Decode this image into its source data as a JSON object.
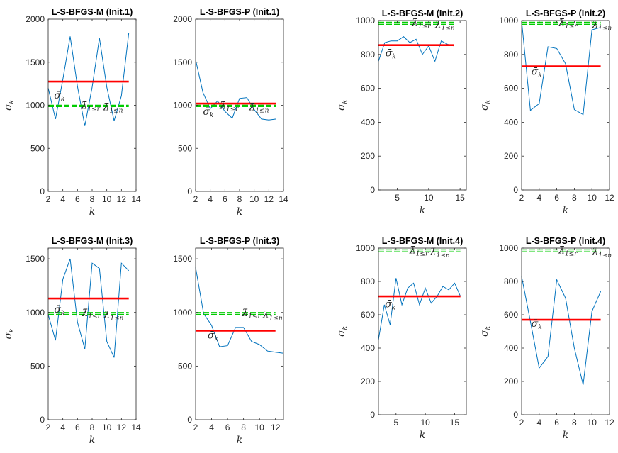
{
  "chart_data": [
    {
      "type": "line",
      "title": "L-S-BFGS-M (Init.1)",
      "xlabel": "k",
      "ylabel": "σ_k",
      "xlim": [
        2,
        14
      ],
      "ylim": [
        0,
        2000
      ],
      "xticks": [
        2,
        4,
        6,
        8,
        10,
        12,
        14
      ],
      "yticks": [
        0,
        500,
        1000,
        1500,
        2000
      ],
      "grid": false,
      "series": [
        {
          "role": "sigma",
          "color": "#0072bd",
          "x": [
            2,
            3,
            4,
            5,
            6,
            7,
            8,
            9,
            10,
            11,
            12,
            13
          ],
          "y": [
            1200,
            840,
            1300,
            1800,
            1220,
            760,
            1210,
            1780,
            1210,
            820,
            1110,
            1840
          ]
        },
        {
          "role": "mean",
          "color": "#ff0000",
          "x": [
            2,
            13
          ],
          "y": [
            1275,
            1275
          ]
        },
        {
          "role": "lambda_r",
          "color": "#00cc00",
          "x": [
            2,
            13
          ],
          "y": [
            1000,
            1000
          ]
        },
        {
          "role": "lambda_n",
          "color": "#00cc00",
          "x": [
            2,
            13
          ],
          "y": [
            985,
            985
          ]
        }
      ]
    },
    {
      "type": "line",
      "title": "L-S-BFGS-P (Init.1)",
      "xlabel": "k",
      "ylabel": "",
      "xlim": [
        2,
        14
      ],
      "ylim": [
        0,
        2000
      ],
      "xticks": [
        2,
        4,
        6,
        8,
        10,
        12,
        14
      ],
      "yticks": [
        0,
        500,
        1000,
        1500,
        2000
      ],
      "grid": false,
      "series": [
        {
          "role": "sigma",
          "color": "#0072bd",
          "x": [
            2,
            3,
            4,
            5,
            6,
            7,
            8,
            9,
            10,
            11,
            12,
            13
          ],
          "y": [
            1530,
            1150,
            960,
            1050,
            930,
            850,
            1080,
            1090,
            950,
            840,
            830,
            840
          ]
        },
        {
          "role": "mean",
          "color": "#ff0000",
          "x": [
            2,
            13
          ],
          "y": [
            1020,
            1020
          ]
        },
        {
          "role": "lambda_r",
          "color": "#00cc00",
          "x": [
            2,
            13
          ],
          "y": [
            1000,
            1000
          ]
        },
        {
          "role": "lambda_n",
          "color": "#00cc00",
          "x": [
            2,
            13
          ],
          "y": [
            985,
            985
          ]
        }
      ]
    },
    {
      "type": "line",
      "title": "L-S-BFGS-M (Init.2)",
      "xlabel": "k",
      "ylabel": "σ_k",
      "xlim": [
        2,
        16
      ],
      "ylim": [
        0,
        1000
      ],
      "xticks": [
        5,
        10,
        15
      ],
      "yticks": [
        0,
        200,
        400,
        600,
        800,
        1000
      ],
      "grid": false,
      "series": [
        {
          "role": "sigma",
          "color": "#0072bd",
          "x": [
            2,
            3,
            4,
            5,
            6,
            7,
            8,
            9,
            10,
            11,
            12,
            13,
            14
          ],
          "y": [
            760,
            870,
            880,
            880,
            905,
            870,
            890,
            800,
            850,
            760,
            880,
            860,
            850
          ]
        },
        {
          "role": "mean",
          "color": "#ff0000",
          "x": [
            2,
            14
          ],
          "y": [
            855,
            855
          ]
        },
        {
          "role": "lambda_r",
          "color": "#00cc00",
          "x": [
            2,
            14
          ],
          "y": [
            990,
            990
          ]
        },
        {
          "role": "lambda_n",
          "color": "#00cc00",
          "x": [
            2,
            14
          ],
          "y": [
            978,
            978
          ]
        }
      ]
    },
    {
      "type": "line",
      "title": "L-S-BFGS-P (Init.2)",
      "xlabel": "k",
      "ylabel": "",
      "xlim": [
        2,
        12
      ],
      "ylim": [
        0,
        1000
      ],
      "xticks": [
        2,
        4,
        6,
        8,
        10,
        12
      ],
      "yticks": [
        0,
        200,
        400,
        600,
        800,
        1000
      ],
      "grid": false,
      "series": [
        {
          "role": "sigma",
          "color": "#0072bd",
          "x": [
            2,
            3,
            4,
            5,
            6,
            7,
            8,
            9,
            10,
            11
          ],
          "y": [
            1000,
            470,
            510,
            845,
            835,
            745,
            475,
            445,
            945,
            960
          ]
        },
        {
          "role": "mean",
          "color": "#ff0000",
          "x": [
            2,
            11
          ],
          "y": [
            730,
            730
          ]
        },
        {
          "role": "lambda_r",
          "color": "#00cc00",
          "x": [
            2,
            11
          ],
          "y": [
            990,
            990
          ]
        },
        {
          "role": "lambda_n",
          "color": "#00cc00",
          "x": [
            2,
            11
          ],
          "y": [
            978,
            978
          ]
        }
      ]
    },
    {
      "type": "line",
      "title": "L-S-BFGS-M (Init.3)",
      "xlabel": "k",
      "ylabel": "σ_k",
      "xlim": [
        2,
        14
      ],
      "ylim": [
        0,
        1600
      ],
      "xticks": [
        2,
        4,
        6,
        8,
        10,
        12,
        14
      ],
      "yticks": [
        0,
        500,
        1000,
        1500
      ],
      "grid": false,
      "series": [
        {
          "role": "sigma",
          "color": "#0072bd",
          "x": [
            2,
            3,
            4,
            5,
            6,
            7,
            8,
            9,
            10,
            11,
            12,
            13
          ],
          "y": [
            980,
            740,
            1310,
            1500,
            910,
            660,
            1460,
            1410,
            730,
            580,
            1460,
            1390
          ]
        },
        {
          "role": "mean",
          "color": "#ff0000",
          "x": [
            2,
            13
          ],
          "y": [
            1130,
            1130
          ]
        },
        {
          "role": "lambda_r",
          "color": "#00cc00",
          "x": [
            2,
            13
          ],
          "y": [
            1000,
            1000
          ]
        },
        {
          "role": "lambda_n",
          "color": "#00cc00",
          "x": [
            2,
            13
          ],
          "y": [
            982,
            982
          ]
        }
      ]
    },
    {
      "type": "line",
      "title": "L-S-BFGS-P (Init.3)",
      "xlabel": "k",
      "ylabel": "",
      "xlim": [
        2,
        13
      ],
      "ylim": [
        0,
        1600
      ],
      "xticks": [
        2,
        4,
        6,
        8,
        10,
        12
      ],
      "yticks": [
        0,
        500,
        1000,
        1500
      ],
      "grid": false,
      "series": [
        {
          "role": "sigma",
          "color": "#0072bd",
          "x": [
            2,
            3,
            4,
            5,
            6,
            7,
            8,
            9,
            10,
            11,
            12,
            13
          ],
          "y": [
            1420,
            990,
            880,
            680,
            690,
            860,
            860,
            730,
            700,
            640,
            630,
            620
          ]
        },
        {
          "role": "mean",
          "color": "#ff0000",
          "x": [
            2,
            12
          ],
          "y": [
            830,
            830
          ]
        },
        {
          "role": "lambda_r",
          "color": "#00cc00",
          "x": [
            2,
            12
          ],
          "y": [
            1000,
            1000
          ]
        },
        {
          "role": "lambda_n",
          "color": "#00cc00",
          "x": [
            2,
            12
          ],
          "y": [
            982,
            982
          ]
        }
      ]
    },
    {
      "type": "line",
      "title": "L-S-BFGS-M (Init.4)",
      "xlabel": "k",
      "ylabel": "σ_k",
      "xlim": [
        2,
        17
      ],
      "ylim": [
        0,
        1000
      ],
      "xticks": [
        5,
        10,
        15
      ],
      "yticks": [
        0,
        200,
        400,
        600,
        800,
        1000
      ],
      "grid": false,
      "series": [
        {
          "role": "sigma",
          "color": "#0072bd",
          "x": [
            2,
            3,
            4,
            5,
            6,
            7,
            8,
            9,
            10,
            11,
            12,
            13,
            14,
            15,
            16
          ],
          "y": [
            450,
            660,
            540,
            820,
            660,
            760,
            790,
            660,
            760,
            670,
            710,
            770,
            750,
            790,
            710
          ]
        },
        {
          "role": "mean",
          "color": "#ff0000",
          "x": [
            2,
            16
          ],
          "y": [
            710,
            710
          ]
        },
        {
          "role": "lambda_r",
          "color": "#00cc00",
          "x": [
            2,
            16
          ],
          "y": [
            990,
            990
          ]
        },
        {
          "role": "lambda_n",
          "color": "#00cc00",
          "x": [
            2,
            16
          ],
          "y": [
            978,
            978
          ]
        }
      ]
    },
    {
      "type": "line",
      "title": "L-S-BFGS-P (Init.4)",
      "xlabel": "k",
      "ylabel": "",
      "xlim": [
        2,
        12
      ],
      "ylim": [
        0,
        1000
      ],
      "xticks": [
        2,
        4,
        6,
        8,
        10,
        12
      ],
      "yticks": [
        0,
        200,
        400,
        600,
        800,
        1000
      ],
      "grid": false,
      "series": [
        {
          "role": "sigma",
          "color": "#0072bd",
          "x": [
            2,
            3,
            4,
            5,
            6,
            7,
            8,
            9,
            10,
            11
          ],
          "y": [
            830,
            560,
            280,
            350,
            810,
            700,
            400,
            180,
            620,
            740
          ]
        },
        {
          "role": "mean",
          "color": "#ff0000",
          "x": [
            2,
            11
          ],
          "y": [
            570,
            570
          ]
        },
        {
          "role": "lambda_r",
          "color": "#00cc00",
          "x": [
            2,
            11
          ],
          "y": [
            990,
            990
          ]
        },
        {
          "role": "lambda_n",
          "color": "#00cc00",
          "x": [
            2,
            11
          ],
          "y": [
            978,
            978
          ]
        }
      ]
    }
  ],
  "annotations": {
    "sigma_bar": {
      "symbol": "σ̄",
      "sub": "k"
    },
    "lambda_r": {
      "symbol": "λ̄",
      "sub": "1≤r"
    },
    "lambda_n": {
      "symbol": "λ̄",
      "sub": "1≤n"
    },
    "ylabel_symbol": "σ",
    "ylabel_sub": "k"
  },
  "colors": {
    "sigma": "#0072bd",
    "mean": "#ff0000",
    "lambda": "#00cc00",
    "axis": "#262626"
  }
}
